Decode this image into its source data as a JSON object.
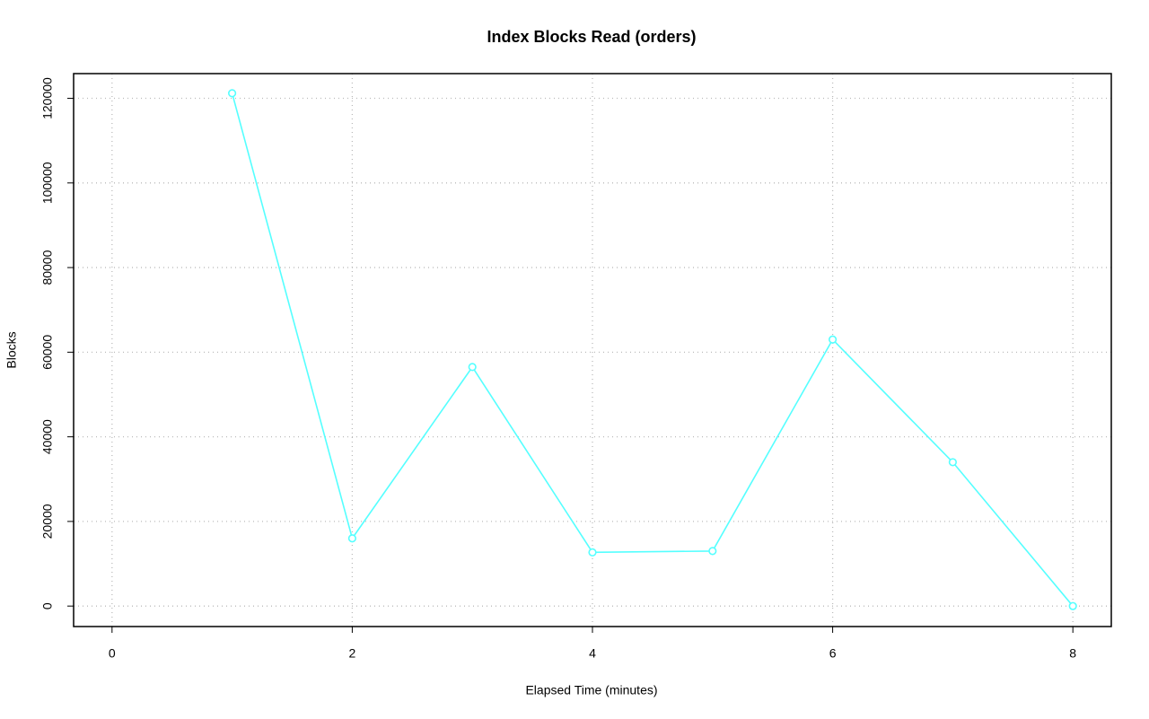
{
  "chart_data": {
    "type": "line",
    "title": "Index Blocks Read (orders)",
    "x_label": "Elapsed Time (minutes)",
    "y_label": "Blocks",
    "x": [
      1,
      2,
      3,
      4,
      5,
      6,
      7,
      8
    ],
    "series": [
      {
        "name": "orders",
        "color": "#55ffff",
        "values": [
          121200,
          16000,
          56500,
          12700,
          13000,
          63000,
          34000,
          0
        ]
      }
    ],
    "xlim": [
      -0.32,
      8.32
    ],
    "xticks": [
      0,
      2,
      4,
      6,
      8
    ],
    "ylim": [
      -4840,
      125840
    ],
    "yticks": [
      0,
      20000,
      40000,
      60000,
      80000,
      100000,
      120000
    ],
    "grid": true
  }
}
